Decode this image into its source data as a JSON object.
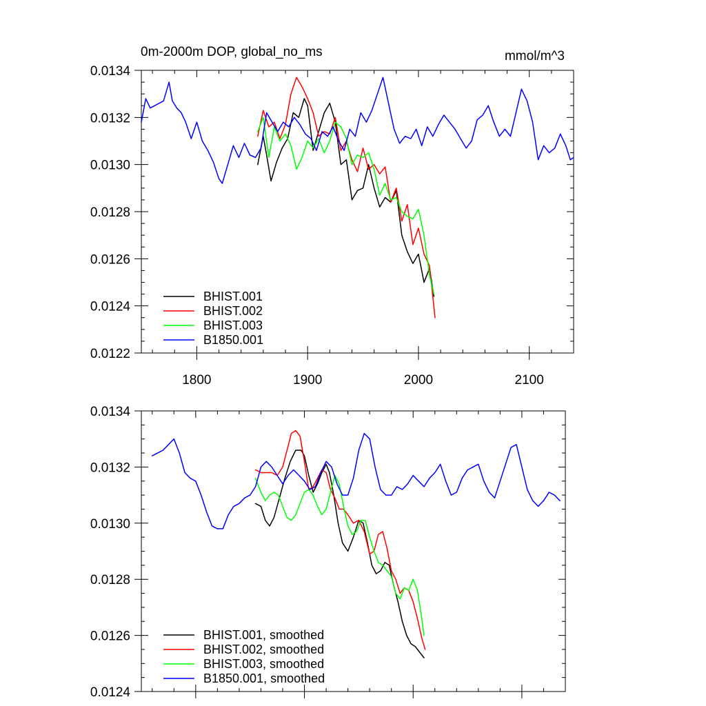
{
  "chart_data": [
    {
      "id": "top",
      "type": "line",
      "title": "0m-2000m DOP, global_no_ms",
      "units": "mmol/m^3",
      "xlim": [
        1750,
        2140
      ],
      "ylim": [
        0.0122,
        0.0134
      ],
      "xticks": [
        1800,
        1900,
        2000,
        2100
      ],
      "xtick_labels": [
        "1800",
        "1900",
        "2000",
        "2100"
      ],
      "yticks": [
        0.0122,
        0.0124,
        0.0126,
        0.0128,
        0.013,
        0.0132,
        0.0134
      ],
      "ytick_labels": [
        "0.0122",
        "0.0124",
        "0.0126",
        "0.0128",
        "0.0130",
        "0.0132",
        "0.0134"
      ],
      "legend_position": "bottom-left",
      "series": [
        {
          "name": "BHIST.001",
          "color": "#000000",
          "x": [
            1855,
            1860,
            1863,
            1867,
            1872,
            1877,
            1882,
            1887,
            1892,
            1897,
            1900,
            1905,
            1910,
            1915,
            1920,
            1925,
            1930,
            1935,
            1940,
            1945,
            1950,
            1955,
            1960,
            1965,
            1970,
            1975,
            1980,
            1985,
            1990,
            1995,
            2000,
            2005,
            2010,
            2014
          ],
          "y": [
            0.013,
            0.01312,
            0.01304,
            0.01293,
            0.01301,
            0.01307,
            0.01311,
            0.01322,
            0.0132,
            0.01328,
            0.01325,
            0.01306,
            0.01314,
            0.01322,
            0.01326,
            0.01318,
            0.013,
            0.01302,
            0.01285,
            0.01289,
            0.0129,
            0.013,
            0.0129,
            0.01282,
            0.01286,
            0.01284,
            0.01289,
            0.0127,
            0.01263,
            0.01258,
            0.01262,
            0.0125,
            0.01256,
            0.01244
          ]
        },
        {
          "name": "BHIST.002",
          "color": "#ff0000",
          "x": [
            1855,
            1860,
            1865,
            1870,
            1875,
            1880,
            1885,
            1890,
            1895,
            1900,
            1905,
            1910,
            1915,
            1920,
            1925,
            1930,
            1935,
            1940,
            1945,
            1950,
            1955,
            1960,
            1965,
            1970,
            1975,
            1980,
            1985,
            1990,
            1995,
            2000,
            2005,
            2010,
            2015
          ],
          "y": [
            0.01312,
            0.01323,
            0.01316,
            0.01318,
            0.01311,
            0.01317,
            0.0133,
            0.01337,
            0.01333,
            0.01328,
            0.01322,
            0.01312,
            0.01314,
            0.01313,
            0.0132,
            0.01306,
            0.0131,
            0.01302,
            0.01297,
            0.01307,
            0.01298,
            0.013,
            0.01296,
            0.01299,
            0.01284,
            0.0129,
            0.01276,
            0.01283,
            0.01266,
            0.01273,
            0.01262,
            0.01257,
            0.01235
          ]
        },
        {
          "name": "BHIST.003",
          "color": "#00ff00",
          "x": [
            1855,
            1860,
            1865,
            1870,
            1875,
            1880,
            1885,
            1890,
            1895,
            1900,
            1905,
            1910,
            1915,
            1920,
            1925,
            1930,
            1935,
            1940,
            1945,
            1950,
            1955,
            1960,
            1965,
            1970,
            1975,
            1980,
            1985,
            1990,
            1995,
            2000,
            2005,
            2010,
            2014
          ],
          "y": [
            0.01314,
            0.0132,
            0.01303,
            0.01316,
            0.0131,
            0.01313,
            0.01308,
            0.01298,
            0.01303,
            0.0131,
            0.01307,
            0.01311,
            0.01305,
            0.0131,
            0.01318,
            0.01316,
            0.01311,
            0.013,
            0.01304,
            0.01303,
            0.01305,
            0.01298,
            0.01287,
            0.01292,
            0.01285,
            0.01286,
            0.0128,
            0.01278,
            0.01277,
            0.01281,
            0.0127,
            0.01253,
            0.01245
          ]
        },
        {
          "name": "B1850.001",
          "color": "#0000ff",
          "x": [
            1750,
            1754,
            1758,
            1762,
            1766,
            1770,
            1775,
            1778,
            1782,
            1786,
            1790,
            1795,
            1800,
            1805,
            1810,
            1815,
            1820,
            1823,
            1828,
            1833,
            1838,
            1843,
            1848,
            1853,
            1858,
            1863,
            1868,
            1873,
            1878,
            1883,
            1888,
            1893,
            1898,
            1903,
            1908,
            1913,
            1918,
            1923,
            1928,
            1933,
            1938,
            1943,
            1948,
            1953,
            1958,
            1963,
            1968,
            1973,
            1978,
            1983,
            1988,
            1993,
            1998,
            2003,
            2008,
            2013,
            2018,
            2023,
            2028,
            2033,
            2038,
            2043,
            2048,
            2053,
            2058,
            2063,
            2068,
            2073,
            2078,
            2083,
            2088,
            2093,
            2098,
            2103,
            2108,
            2113,
            2118,
            2123,
            2128,
            2133,
            2137,
            2140
          ],
          "y": [
            0.01318,
            0.01328,
            0.01324,
            0.01325,
            0.01326,
            0.01327,
            0.01335,
            0.01327,
            0.01324,
            0.01322,
            0.01318,
            0.01311,
            0.01318,
            0.0131,
            0.01306,
            0.01301,
            0.01294,
            0.01292,
            0.013,
            0.01308,
            0.01303,
            0.01309,
            0.01304,
            0.01303,
            0.01307,
            0.01322,
            0.01318,
            0.01314,
            0.01318,
            0.01316,
            0.0132,
            0.01317,
            0.01313,
            0.01311,
            0.01306,
            0.01314,
            0.01312,
            0.01316,
            0.0131,
            0.01306,
            0.01315,
            0.01312,
            0.01322,
            0.01318,
            0.01323,
            0.0133,
            0.01337,
            0.01326,
            0.01315,
            0.01309,
            0.01312,
            0.01311,
            0.01315,
            0.01308,
            0.01316,
            0.01312,
            0.01317,
            0.01321,
            0.01318,
            0.01315,
            0.01311,
            0.01307,
            0.0131,
            0.01319,
            0.01321,
            0.01325,
            0.01318,
            0.01312,
            0.01315,
            0.01312,
            0.01322,
            0.01332,
            0.01327,
            0.01318,
            0.01302,
            0.01308,
            0.01305,
            0.01307,
            0.01313,
            0.01308,
            0.01302,
            0.01303
          ]
        }
      ]
    },
    {
      "id": "bottom",
      "type": "line",
      "title": "",
      "xlim": [
        1750,
        2140
      ],
      "ylim": [
        0.0124,
        0.0134
      ],
      "xticks": [
        1800,
        1900,
        2000,
        2100
      ],
      "xtick_labels": [],
      "yticks": [
        0.0124,
        0.0126,
        0.0128,
        0.013,
        0.0132,
        0.0134
      ],
      "ytick_labels": [
        "0.0124",
        "0.0126",
        "0.0128",
        "0.0130",
        "0.0132",
        "0.0134"
      ],
      "legend_position": "bottom-left",
      "series": [
        {
          "name": "BHIST.001, smoothed",
          "color": "#000000",
          "x": [
            1855,
            1860,
            1864,
            1868,
            1872,
            1877,
            1882,
            1887,
            1892,
            1897,
            1900,
            1904,
            1908,
            1912,
            1916,
            1920,
            1923,
            1927,
            1931,
            1935,
            1940,
            1945,
            1950,
            1954,
            1958,
            1962,
            1966,
            1970,
            1974,
            1978,
            1982,
            1986,
            1990,
            1994,
            1998,
            2002,
            2006,
            2010
          ],
          "y": [
            0.01307,
            0.01306,
            0.01301,
            0.01299,
            0.01302,
            0.01309,
            0.01316,
            0.01322,
            0.01326,
            0.01326,
            0.01324,
            0.01317,
            0.01311,
            0.01314,
            0.01318,
            0.01321,
            0.01318,
            0.0131,
            0.013,
            0.01293,
            0.0129,
            0.01295,
            0.01301,
            0.013,
            0.01293,
            0.01285,
            0.01282,
            0.01283,
            0.01286,
            0.01285,
            0.01278,
            0.01272,
            0.01265,
            0.0126,
            0.01257,
            0.01256,
            0.01254,
            0.01252
          ]
        },
        {
          "name": "BHIST.002, smoothed",
          "color": "#ff0000",
          "x": [
            1855,
            1860,
            1865,
            1870,
            1875,
            1880,
            1884,
            1888,
            1892,
            1896,
            1900,
            1904,
            1908,
            1912,
            1916,
            1920,
            1924,
            1928,
            1932,
            1936,
            1940,
            1945,
            1950,
            1955,
            1960,
            1964,
            1968,
            1972,
            1976,
            1980,
            1984,
            1988,
            1992,
            1996,
            2000,
            2004,
            2008,
            2011
          ],
          "y": [
            0.01319,
            0.01318,
            0.01318,
            0.01318,
            0.01317,
            0.0132,
            0.01326,
            0.01332,
            0.01333,
            0.01331,
            0.01322,
            0.01312,
            0.01313,
            0.01316,
            0.01319,
            0.01318,
            0.01312,
            0.01309,
            0.01305,
            0.01305,
            0.01303,
            0.013,
            0.01301,
            0.01297,
            0.01289,
            0.0129,
            0.01296,
            0.01297,
            0.01291,
            0.01283,
            0.0128,
            0.01275,
            0.01277,
            0.01276,
            0.01272,
            0.01266,
            0.01259,
            0.01255
          ]
        },
        {
          "name": "BHIST.003, smoothed",
          "color": "#00ff00",
          "x": [
            1855,
            1860,
            1864,
            1868,
            1872,
            1876,
            1880,
            1884,
            1888,
            1892,
            1896,
            1900,
            1904,
            1908,
            1912,
            1916,
            1920,
            1924,
            1928,
            1932,
            1936,
            1940,
            1944,
            1948,
            1952,
            1956,
            1960,
            1964,
            1968,
            1972,
            1976,
            1980,
            1984,
            1988,
            1992,
            1996,
            2000,
            2004,
            2008,
            2010
          ],
          "y": [
            0.01316,
            0.01311,
            0.01308,
            0.0131,
            0.01311,
            0.0131,
            0.01306,
            0.01302,
            0.01301,
            0.01303,
            0.01307,
            0.01311,
            0.01312,
            0.0131,
            0.01306,
            0.01303,
            0.01305,
            0.01311,
            0.01317,
            0.01314,
            0.01306,
            0.01299,
            0.01296,
            0.01297,
            0.01301,
            0.01301,
            0.01295,
            0.0129,
            0.01286,
            0.01285,
            0.01283,
            0.01281,
            0.01275,
            0.01273,
            0.01277,
            0.01276,
            0.0128,
            0.01276,
            0.01266,
            0.0126
          ]
        },
        {
          "name": "B1850.001, smoothed",
          "color": "#0000ff",
          "x": [
            1760,
            1765,
            1770,
            1775,
            1780,
            1785,
            1790,
            1795,
            1800,
            1805,
            1810,
            1815,
            1820,
            1825,
            1830,
            1835,
            1840,
            1845,
            1850,
            1855,
            1860,
            1865,
            1870,
            1875,
            1880,
            1885,
            1890,
            1895,
            1900,
            1905,
            1910,
            1915,
            1920,
            1925,
            1930,
            1935,
            1940,
            1945,
            1950,
            1955,
            1960,
            1965,
            1970,
            1975,
            1980,
            1985,
            1990,
            1995,
            2000,
            2005,
            2010,
            2015,
            2020,
            2025,
            2030,
            2035,
            2040,
            2045,
            2050,
            2055,
            2060,
            2065,
            2070,
            2075,
            2080,
            2085,
            2090,
            2095,
            2100,
            2105,
            2110,
            2115,
            2120,
            2125,
            2130,
            2135
          ],
          "y": [
            0.01324,
            0.01325,
            0.01326,
            0.01328,
            0.0133,
            0.01325,
            0.01318,
            0.01316,
            0.01315,
            0.0131,
            0.01304,
            0.01299,
            0.01298,
            0.01298,
            0.01303,
            0.01306,
            0.01307,
            0.01309,
            0.0131,
            0.01313,
            0.0132,
            0.01322,
            0.0132,
            0.01317,
            0.01314,
            0.01317,
            0.01319,
            0.01317,
            0.01315,
            0.01312,
            0.01313,
            0.01318,
            0.01322,
            0.0132,
            0.01314,
            0.0131,
            0.0131,
            0.01316,
            0.01326,
            0.01332,
            0.0133,
            0.0132,
            0.01312,
            0.0131,
            0.0131,
            0.01313,
            0.01312,
            0.01314,
            0.01317,
            0.01315,
            0.01313,
            0.01316,
            0.01318,
            0.01321,
            0.01315,
            0.0131,
            0.01311,
            0.01316,
            0.01319,
            0.0132,
            0.01321,
            0.01315,
            0.01311,
            0.01309,
            0.01315,
            0.01321,
            0.01327,
            0.01328,
            0.0132,
            0.01312,
            0.01308,
            0.01306,
            0.01308,
            0.01311,
            0.0131,
            0.01308
          ]
        }
      ]
    }
  ]
}
